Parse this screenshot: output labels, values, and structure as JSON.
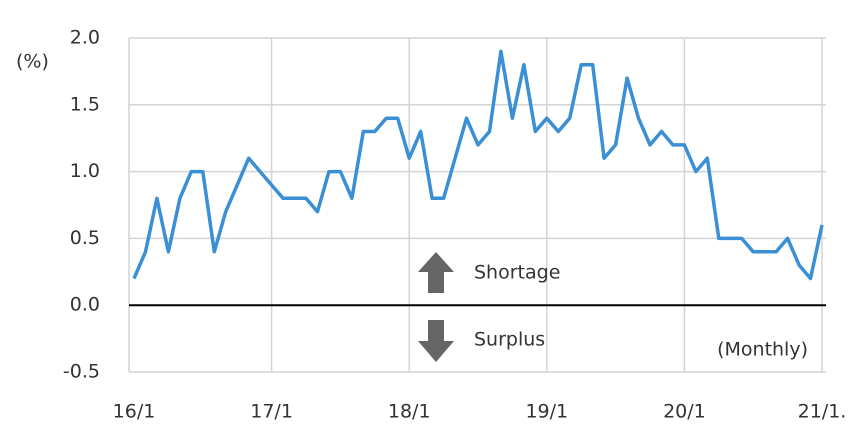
{
  "chart_data": {
    "type": "line",
    "y_label": "(%)",
    "annotations": [
      "Shortage",
      "Surplus",
      "(Monthly)"
    ],
    "categories": [
      "16/1",
      null,
      null,
      null,
      null,
      null,
      null,
      null,
      null,
      null,
      null,
      null,
      "17/1",
      null,
      null,
      null,
      null,
      null,
      null,
      null,
      null,
      null,
      null,
      null,
      "18/1",
      null,
      null,
      null,
      null,
      null,
      null,
      null,
      null,
      null,
      null,
      null,
      "19/1",
      null,
      null,
      null,
      null,
      null,
      null,
      null,
      null,
      null,
      null,
      null,
      "20/1",
      null,
      null,
      null,
      null,
      null,
      null,
      null,
      null,
      null,
      null,
      null,
      "21/1."
    ],
    "values": [
      0.2,
      0.4,
      0.8,
      0.4,
      0.8,
      1.0,
      1.0,
      0.4,
      0.7,
      0.9,
      1.1,
      1.0,
      0.9,
      0.8,
      0.8,
      0.8,
      0.7,
      1.0,
      1.0,
      0.8,
      1.3,
      1.3,
      1.4,
      1.4,
      1.1,
      1.3,
      0.8,
      0.8,
      1.1,
      1.4,
      1.2,
      1.3,
      1.9,
      1.4,
      1.8,
      1.3,
      1.4,
      1.3,
      1.4,
      1.8,
      1.8,
      1.1,
      1.2,
      1.7,
      1.4,
      1.2,
      1.3,
      1.2,
      1.2,
      1.0,
      1.1,
      0.5,
      0.5,
      0.5,
      0.4,
      0.4,
      0.4,
      0.5,
      0.3,
      0.2,
      0.6
    ],
    "color": "#3a8fd5",
    "ylim": [
      -0.5,
      2.0
    ],
    "yticks": [
      {
        "value": 2,
        "label": "2.0"
      },
      1.5,
      {
        "value": 1,
        "label": "1.0"
      },
      0.5,
      {
        "value": 0,
        "label": "0.0"
      },
      -0.5
    ],
    "grid": true
  }
}
